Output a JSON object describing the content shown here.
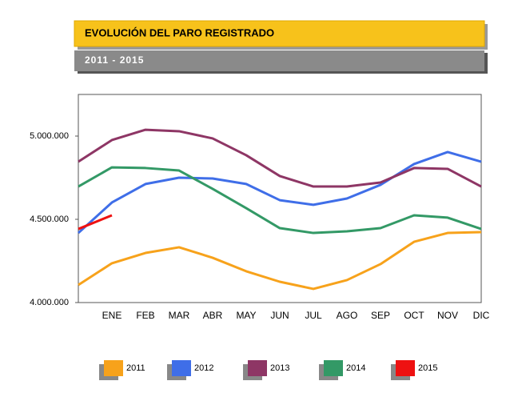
{
  "chart_data": {
    "type": "line",
    "title": "EVOLUCIÓN DEL PARO REGISTRADO",
    "subtitle": "2011 - 2015",
    "categories": [
      null,
      "ENE",
      "FEB",
      "MAR",
      "ABR",
      "MAY",
      "JUN",
      "JUL",
      "AGO",
      "SEP",
      "OCT",
      "NOV",
      "DIC"
    ],
    "ylim": [
      4000000,
      5250000
    ],
    "yticks": [
      {
        "value": 4000000,
        "label": "4.000.000"
      },
      {
        "value": 4500000,
        "label": "4.500.000"
      },
      {
        "value": 5000000,
        "label": "5.000.000"
      }
    ],
    "series": [
      {
        "name": "2011",
        "color": "#f7a21b",
        "values": [
          4106000,
          4236000,
          4298000,
          4332000,
          4269000,
          4188000,
          4125000,
          4082000,
          4135000,
          4231000,
          4365000,
          4418000,
          4423000
        ]
      },
      {
        "name": "2012",
        "color": "#3f6ee8",
        "values": [
          4418000,
          4601000,
          4712000,
          4750000,
          4745000,
          4712000,
          4615000,
          4587000,
          4625000,
          4707000,
          4832000,
          4904000,
          4846000
        ]
      },
      {
        "name": "2013",
        "color": "#8e3665",
        "values": [
          4846000,
          4976000,
          5038000,
          5029000,
          4986000,
          4885000,
          4760000,
          4697000,
          4697000,
          4721000,
          4808000,
          4803000,
          4697000
        ]
      },
      {
        "name": "2014",
        "color": "#339966",
        "values": [
          4697000,
          4812000,
          4808000,
          4793000,
          4683000,
          4567000,
          4447000,
          4418000,
          4428000,
          4447000,
          4524000,
          4510000,
          4442000
        ]
      },
      {
        "name": "2015",
        "color": "#ee1111",
        "values": [
          4442000,
          4524000,
          null,
          null,
          null,
          null,
          null,
          null,
          null,
          null,
          null,
          null,
          null
        ]
      }
    ]
  }
}
